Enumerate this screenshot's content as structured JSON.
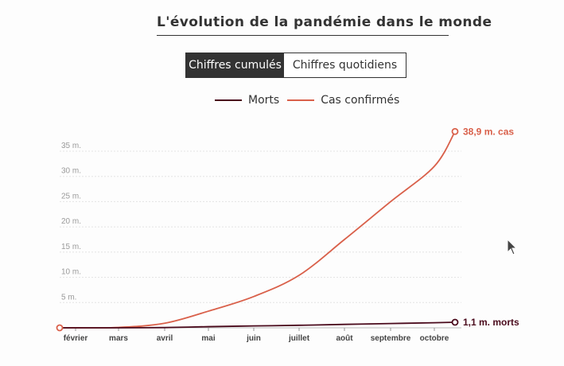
{
  "title": "L'évolution de la pandémie dans le monde",
  "toggle": {
    "cumulative_label": "Chiffres cumulés",
    "daily_label": "Chiffres quotidiens",
    "selected": "cumulative"
  },
  "legend": [
    {
      "label": "Morts",
      "color": "#4a0a1c"
    },
    {
      "label": "Cas confirmés",
      "color": "#d9604a"
    }
  ],
  "chart_data": {
    "type": "line",
    "x": [
      "février",
      "mars",
      "avril",
      "mai",
      "juin",
      "juillet",
      "août",
      "septembre",
      "octobre"
    ],
    "x_ticks": [
      "février",
      "mars",
      "avril",
      "mai",
      "juin",
      "juillet",
      "août",
      "septembre",
      "octobre"
    ],
    "y_ticks": [
      "5 m.",
      "10 m.",
      "15 m.",
      "20 m.",
      "25 m.",
      "30 m.",
      "35 m."
    ],
    "ylim": [
      0,
      35
    ],
    "grid": true,
    "legend_position": "top-center",
    "series": [
      {
        "name": "Cas confirmés",
        "color": "#d9604a",
        "values": [
          0.01,
          0.08,
          0.9,
          3.3,
          6.2,
          10.4,
          17.5,
          25.0,
          32.0
        ],
        "end_value": 38.9,
        "end_label": "38,9 m. cas"
      },
      {
        "name": "Morts",
        "color": "#4a0a1c",
        "values": [
          0.0,
          0.003,
          0.05,
          0.23,
          0.37,
          0.5,
          0.68,
          0.85,
          1.0
        ],
        "end_value": 1.1,
        "end_label": "1,1 m. morts"
      }
    ]
  }
}
